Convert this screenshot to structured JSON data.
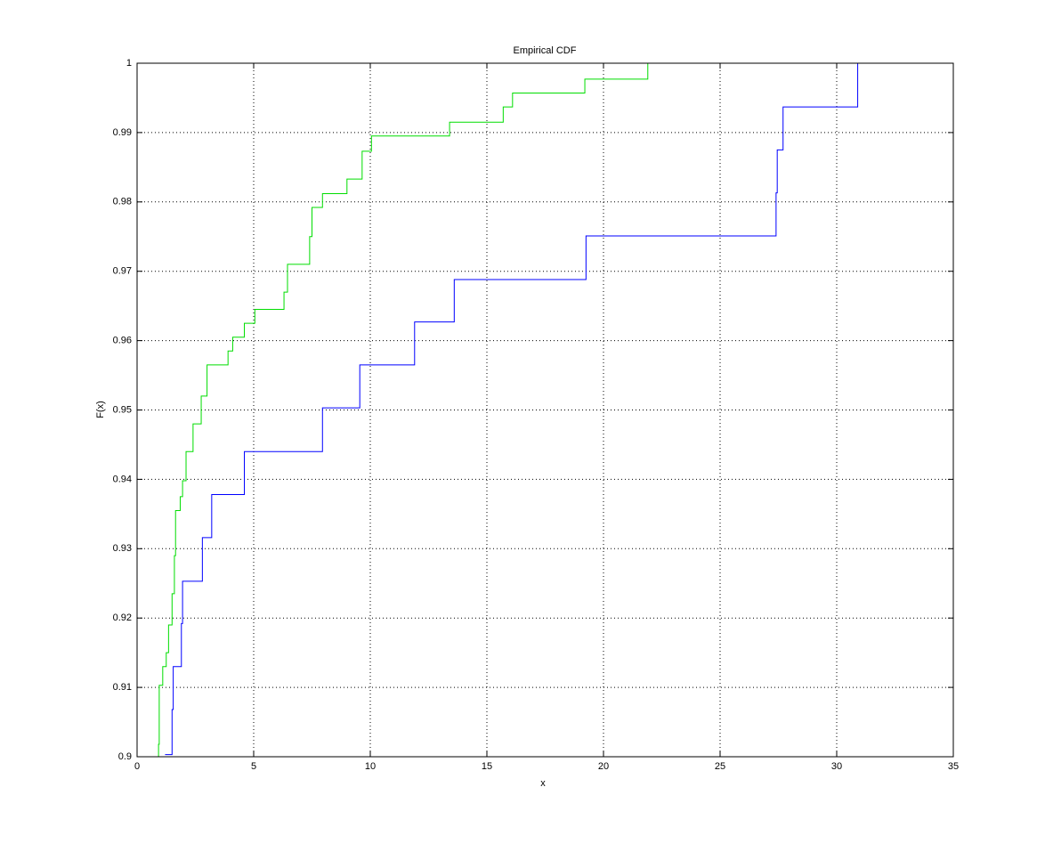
{
  "chart_data": {
    "type": "stairs",
    "title": "Empirical CDF",
    "x_label": "x",
    "y_label": "F(x)",
    "series": [
      {
        "color": "#00dd00",
        "x": [
          0.9,
          0.92,
          0.95,
          1.1,
          1.25,
          1.35,
          1.5,
          1.6,
          1.65,
          1.85,
          1.95,
          2.1,
          2.4,
          2.75,
          3.0,
          3.9,
          4.1,
          4.6,
          5.05,
          6.3,
          6.45,
          7.4,
          7.5,
          7.95,
          9.0,
          9.65,
          10.05,
          13.4,
          15.7,
          16.1,
          19.2,
          21.9
        ],
        "y": [
          0.9,
          0.9018,
          0.9103,
          0.913,
          0.915,
          0.919,
          0.9235,
          0.929,
          0.9355,
          0.9375,
          0.9398,
          0.944,
          0.948,
          0.952,
          0.9565,
          0.9585,
          0.9605,
          0.9625,
          0.9645,
          0.967,
          0.971,
          0.975,
          0.9792,
          0.9812,
          0.9833,
          0.9873,
          0.9895,
          0.9915,
          0.9937,
          0.9957,
          0.9977,
          1
        ]
      },
      {
        "color": "#0000ff",
        "x": [
          1.2,
          1.5,
          1.55,
          1.9,
          1.95,
          2.8,
          3.2,
          4.6,
          7.95,
          9.55,
          11.9,
          13.6,
          19.25,
          27.4,
          27.45,
          27.7,
          30.9
        ],
        "y": [
          0.9003,
          0.9068,
          0.913,
          0.9192,
          0.9253,
          0.9316,
          0.9378,
          0.944,
          0.9503,
          0.9565,
          0.9627,
          0.9688,
          0.9751,
          0.9813,
          0.9875,
          0.9937,
          1
        ]
      }
    ],
    "xlim": [
      0,
      35
    ],
    "xticks": [
      0,
      5,
      10,
      15,
      20,
      25,
      30,
      35
    ],
    "ylim": [
      0.9,
      1
    ],
    "yticks": [
      0.9,
      0.91,
      0.92,
      0.93,
      0.94,
      0.95,
      0.96,
      0.97,
      0.98,
      0.99,
      1
    ],
    "grid": true
  }
}
